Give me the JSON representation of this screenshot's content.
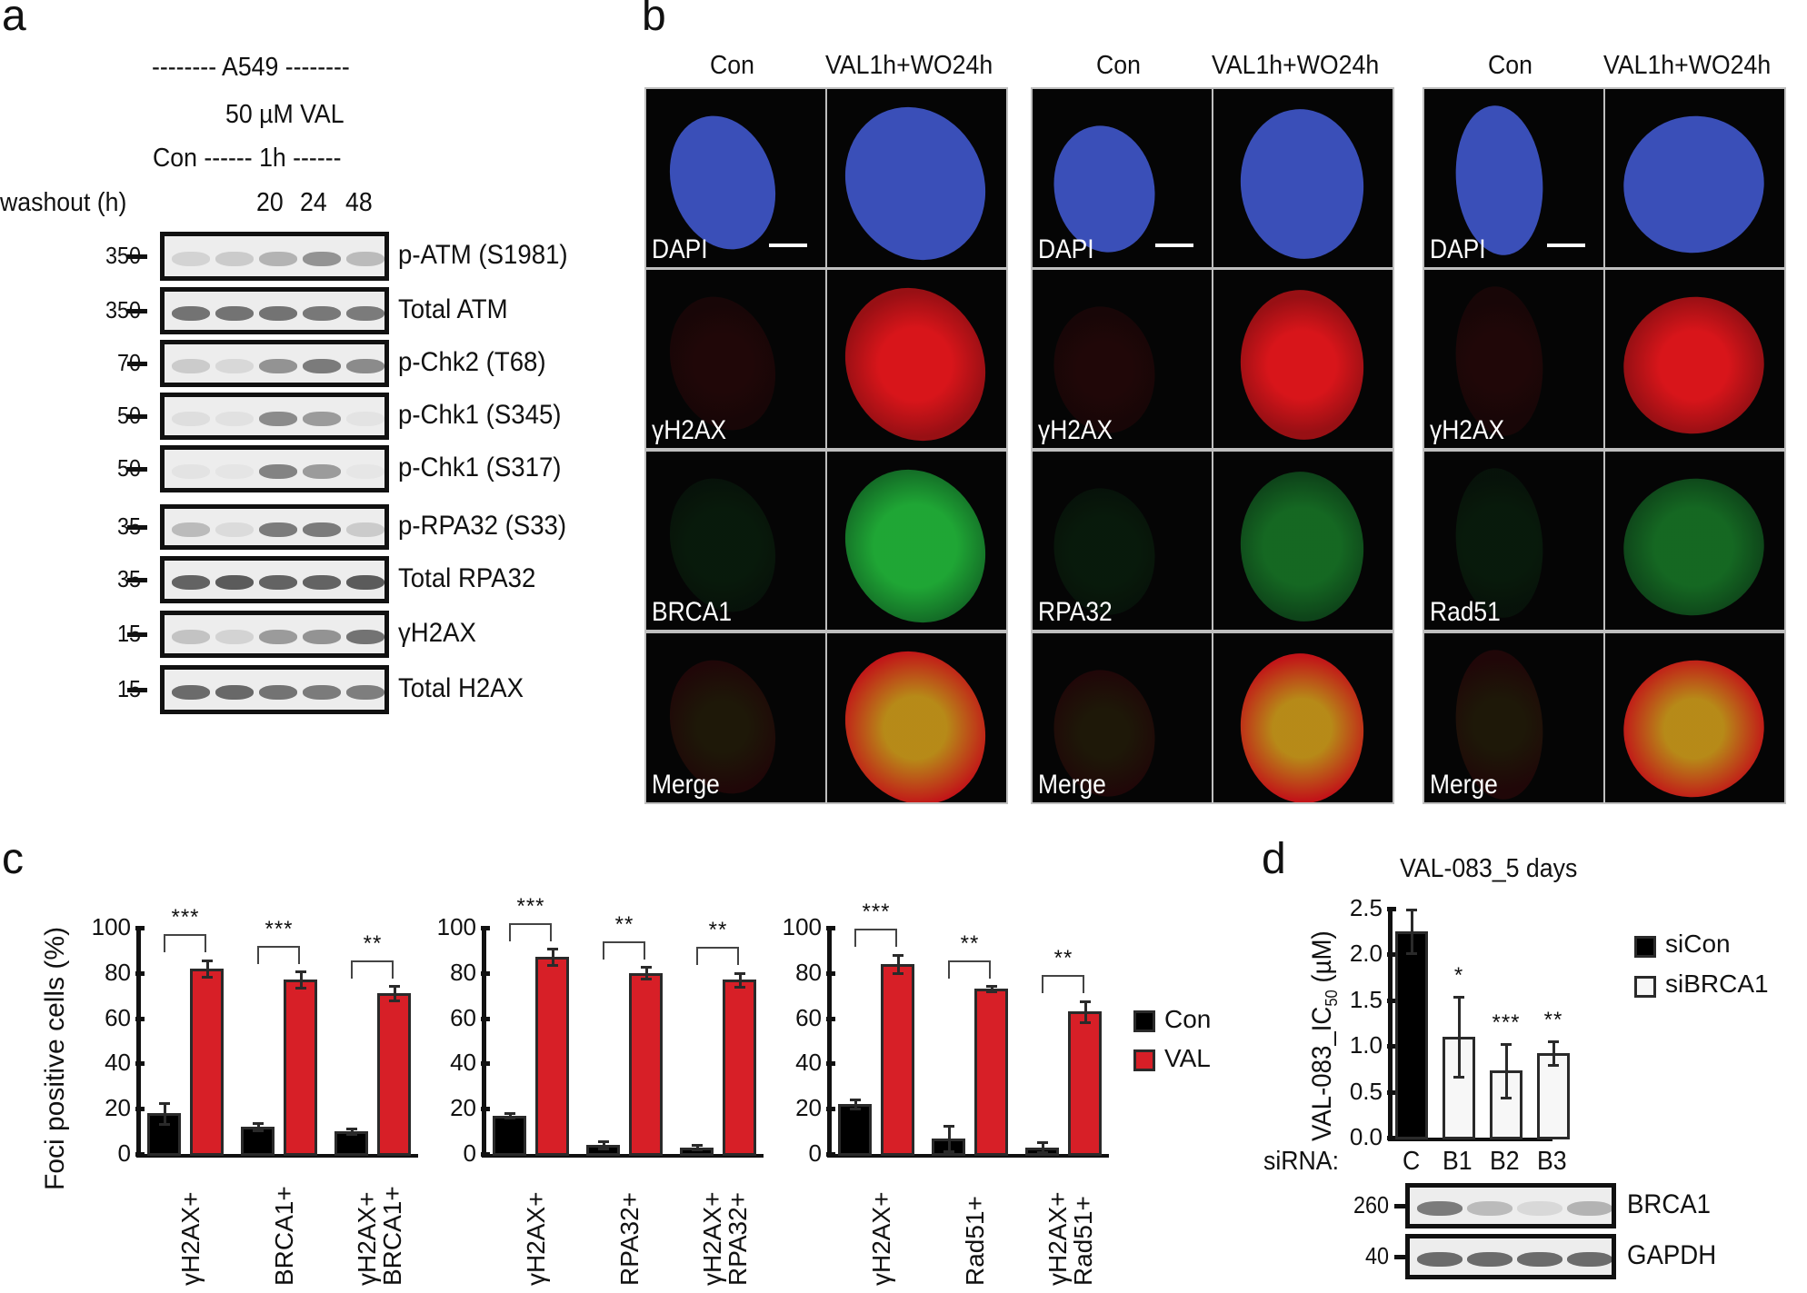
{
  "panel_a": {
    "letter": "a",
    "cell_line": "-------- A549 --------",
    "treatment": "50 µM VAL",
    "timeline": "Con ------ 1h ------",
    "washout_label": "washout (h)",
    "washout_times": [
      "20",
      "24",
      "48"
    ],
    "blots": [
      {
        "mw": "350",
        "label": "p-ATM (S1981)",
        "bands": [
          0.15,
          0.2,
          0.35,
          0.55,
          0.3
        ]
      },
      {
        "mw": "350",
        "label": "Total ATM",
        "bands": [
          0.75,
          0.75,
          0.75,
          0.72,
          0.7
        ]
      },
      {
        "mw": "70",
        "label": "p-Chk2 (T68)",
        "bands": [
          0.2,
          0.12,
          0.55,
          0.7,
          0.6
        ]
      },
      {
        "mw": "50",
        "label": "p-Chk1 (S345)",
        "bands": [
          0.08,
          0.06,
          0.6,
          0.5,
          0.05
        ]
      },
      {
        "mw": "50",
        "label": "p-Chk1 (S317)",
        "bands": [
          0.05,
          0.04,
          0.65,
          0.5,
          0.03
        ]
      },
      {
        "mw": "35",
        "label": "p-RPA32 (S33)",
        "bands": [
          0.3,
          0.1,
          0.7,
          0.7,
          0.2
        ]
      },
      {
        "mw": "35",
        "label": "Total RPA32",
        "bands": [
          0.85,
          0.9,
          0.85,
          0.85,
          0.9
        ]
      },
      {
        "mw": "15",
        "label": "γH2AX",
        "bands": [
          0.25,
          0.15,
          0.5,
          0.55,
          0.75
        ]
      },
      {
        "mw": "15",
        "label": "Total H2AX",
        "bands": [
          0.8,
          0.82,
          0.75,
          0.7,
          0.68
        ]
      }
    ]
  },
  "panel_b": {
    "letter": "b",
    "groups": [
      {
        "col_headers": [
          "Con",
          "VAL1h+WO24h"
        ],
        "rows": [
          "DAPI",
          "γH2AX",
          "BRCA1",
          "Merge"
        ]
      },
      {
        "col_headers": [
          "Con",
          "VAL1h+WO24h"
        ],
        "rows": [
          "DAPI",
          "γH2AX",
          "RPA32",
          "Merge"
        ]
      },
      {
        "col_headers": [
          "Con",
          "VAL1h+WO24h"
        ],
        "rows": [
          "DAPI",
          "γH2AX",
          "Rad51",
          "Merge"
        ]
      }
    ],
    "colors": {
      "dapi": "#3a4fb8",
      "red": "#e3161b",
      "green": "#22b83a",
      "merge": "#d6a21c"
    }
  },
  "panel_c": {
    "letter": "c",
    "ylabel": "Foci positive cells (%)",
    "legend": [
      {
        "name": "Con",
        "color": "#000000"
      },
      {
        "name": "VAL",
        "color": "#d71f27"
      }
    ],
    "yticks": [
      "0",
      "20",
      "40",
      "60",
      "80",
      "100"
    ]
  },
  "panel_d": {
    "letter": "d",
    "title": "VAL-083_5 days",
    "ylabel_main": "VAL-083_IC",
    "ylabel_sub": "50",
    "ylabel_unit": " (µM)",
    "xprefix": "siRNA:",
    "legend": [
      {
        "name": "siCon",
        "color": "#000000"
      },
      {
        "name": "siBRCA1",
        "color": "#f7f7f7"
      }
    ],
    "yticks": [
      "0.0",
      "0.5",
      "1.0",
      "1.5",
      "2.0",
      "2.5"
    ],
    "blots": [
      {
        "mw": "260",
        "label": "BRCA1",
        "bands": [
          0.7,
          0.3,
          0.12,
          0.35
        ]
      },
      {
        "mw": "40",
        "label": "GAPDH",
        "bands": [
          0.8,
          0.8,
          0.8,
          0.8
        ]
      }
    ]
  },
  "chart_data": [
    {
      "type": "bar",
      "title": "",
      "xlabel": "",
      "ylabel": "Foci positive cells (%)",
      "ylim": [
        0,
        100
      ],
      "categories": [
        "γH2AX+",
        "BRCA1+",
        "γH2AX+ BRCA1+"
      ],
      "series": [
        {
          "name": "Con",
          "values": [
            18,
            12,
            10
          ],
          "errors": [
            5,
            2,
            1.5
          ]
        },
        {
          "name": "VAL",
          "values": [
            82,
            77,
            71
          ],
          "errors": [
            4,
            4,
            3.5
          ]
        }
      ],
      "significance": [
        "***",
        "***",
        "**"
      ],
      "legend_position": "right",
      "grid": false
    },
    {
      "type": "bar",
      "title": "",
      "xlabel": "",
      "ylabel": "Foci positive cells (%)",
      "ylim": [
        0,
        100
      ],
      "categories": [
        "γH2AX+",
        "RPA32+",
        "γH2AX+ RPA32+"
      ],
      "series": [
        {
          "name": "Con",
          "values": [
            17,
            4,
            3
          ],
          "errors": [
            1.5,
            2,
            1.5
          ]
        },
        {
          "name": "VAL",
          "values": [
            87,
            80,
            77
          ],
          "errors": [
            4,
            3,
            3.5
          ]
        }
      ],
      "significance": [
        "***",
        "**",
        "**"
      ],
      "legend_position": "right",
      "grid": false
    },
    {
      "type": "bar",
      "title": "",
      "xlabel": "",
      "ylabel": "Foci positive cells (%)",
      "ylim": [
        0,
        100
      ],
      "categories": [
        "γH2AX+",
        "Rad51+",
        "γH2AX+ Rad51+"
      ],
      "series": [
        {
          "name": "Con",
          "values": [
            22,
            7,
            3
          ],
          "errors": [
            2.5,
            6,
            2.5
          ]
        },
        {
          "name": "VAL",
          "values": [
            84,
            73,
            63
          ],
          "errors": [
            4.5,
            1.5,
            5
          ]
        }
      ],
      "significance": [
        "***",
        "**",
        "**"
      ],
      "legend_position": "right",
      "grid": false
    },
    {
      "type": "bar",
      "title": "VAL-083_5 days",
      "xlabel": "siRNA",
      "ylabel": "VAL-083_IC50 (µM)",
      "ylim": [
        0,
        2.5
      ],
      "categories": [
        "C",
        "B1",
        "B2",
        "B3"
      ],
      "series": [
        {
          "name": "siCon",
          "values": [
            2.25,
            null,
            null,
            null
          ],
          "errors": [
            0.25,
            null,
            null,
            null
          ]
        },
        {
          "name": "siBRCA1",
          "values": [
            null,
            1.1,
            0.73,
            0.92
          ],
          "errors": [
            null,
            0.45,
            0.3,
            0.14
          ]
        }
      ],
      "significance": [
        "",
        "*",
        "***",
        "**"
      ],
      "legend_position": "right",
      "grid": false
    }
  ]
}
